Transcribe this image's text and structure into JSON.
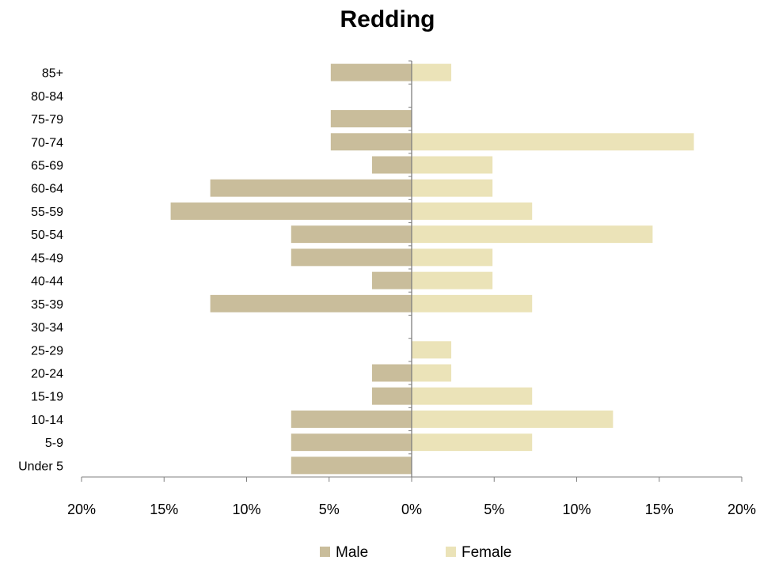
{
  "chart_data": {
    "type": "bar",
    "orientation": "horizontal",
    "title": "Redding",
    "categories": [
      "85+",
      "80-84",
      "75-79",
      "70-74",
      "65-69",
      "60-64",
      "55-59",
      "50-54",
      "45-49",
      "40-44",
      "35-39",
      "30-34",
      "25-29",
      "20-24",
      "15-19",
      "10-14",
      "5-9",
      "Under 5"
    ],
    "series": [
      {
        "name": "Male",
        "values": [
          -4.9,
          0,
          -4.9,
          -4.9,
          -2.4,
          -12.2,
          -14.6,
          -7.3,
          -7.3,
          -2.4,
          -12.2,
          0,
          0,
          -2.4,
          -2.4,
          -7.3,
          -7.3,
          -7.3
        ],
        "color": "#c9bd9b"
      },
      {
        "name": "Female",
        "values": [
          2.4,
          0,
          0,
          17.1,
          4.9,
          4.9,
          7.3,
          14.6,
          4.9,
          4.9,
          7.3,
          0,
          2.4,
          2.4,
          7.3,
          12.2,
          7.3,
          0
        ],
        "color": "#ebe3b8"
      }
    ],
    "xlim": [
      -20,
      20
    ],
    "xticks": [
      "20%",
      "15%",
      "10%",
      "5%",
      "0%",
      "5%",
      "10%",
      "15%",
      "20%"
    ],
    "legend_position": "bottom",
    "grid": false
  }
}
